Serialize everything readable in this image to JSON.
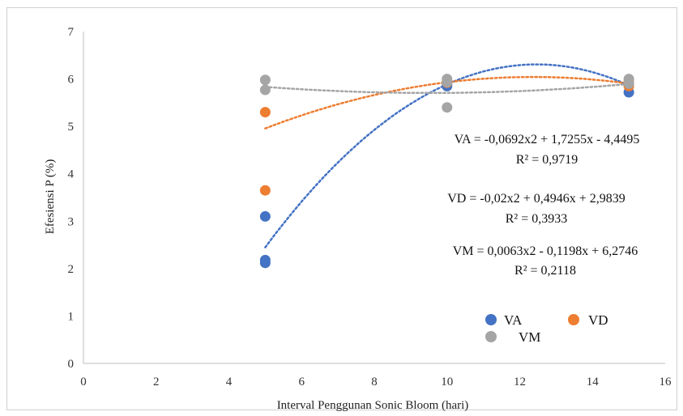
{
  "chart_data": {
    "type": "scatter",
    "title": "",
    "xlabel": "Interval Penggunan Sonic Bloom (hari)",
    "ylabel": "Efesiensi P (%)",
    "xlim": [
      0,
      16
    ],
    "ylim": [
      0,
      7
    ],
    "xticks": [
      "0",
      "2",
      "4",
      "6",
      "8",
      "10",
      "12",
      "14",
      "16"
    ],
    "yticks": [
      "0",
      "1",
      "2",
      "3",
      "4",
      "5",
      "6",
      "7"
    ],
    "grid": false,
    "legend_position": "bottom-right",
    "series": [
      {
        "name": "VA",
        "color": "#4472C4",
        "points": [
          [
            5,
            3.1
          ],
          [
            5,
            2.18
          ],
          [
            5,
            2.12
          ],
          [
            10,
            5.9
          ],
          [
            10,
            5.85
          ],
          [
            15,
            5.72
          ],
          [
            15,
            5.9
          ]
        ],
        "trend": {
          "a": -0.0692,
          "b": 1.7255,
          "c": -4.4495
        },
        "equation": "VA = -0,0692x2 + 1,7255x - 4,4495",
        "r2": "R² = 0,9719"
      },
      {
        "name": "VD",
        "color": "#ED7D31",
        "points": [
          [
            5,
            5.3
          ],
          [
            5,
            3.65
          ],
          [
            10,
            5.95
          ],
          [
            10,
            5.92
          ],
          [
            15,
            5.95
          ],
          [
            15,
            5.85
          ]
        ],
        "trend": {
          "a": -0.02,
          "b": 0.4946,
          "c": 2.9839
        },
        "equation": "VD = -0,02x2 + 0,4946x + 2,9839",
        "r2": "R² = 0,3933"
      },
      {
        "name": "VM",
        "color": "#A5A5A5",
        "points": [
          [
            5,
            5.98
          ],
          [
            5,
            5.77
          ],
          [
            10,
            6.0
          ],
          [
            10,
            5.93
          ],
          [
            10,
            5.4
          ],
          [
            15,
            6.0
          ],
          [
            15,
            5.9
          ]
        ],
        "trend": {
          "a": 0.0063,
          "b": -0.1198,
          "c": 6.2746
        },
        "equation": "VM = 0,0063x2 - 0,1198x + 6,2746",
        "r2": "R² = 0,2118"
      }
    ]
  }
}
